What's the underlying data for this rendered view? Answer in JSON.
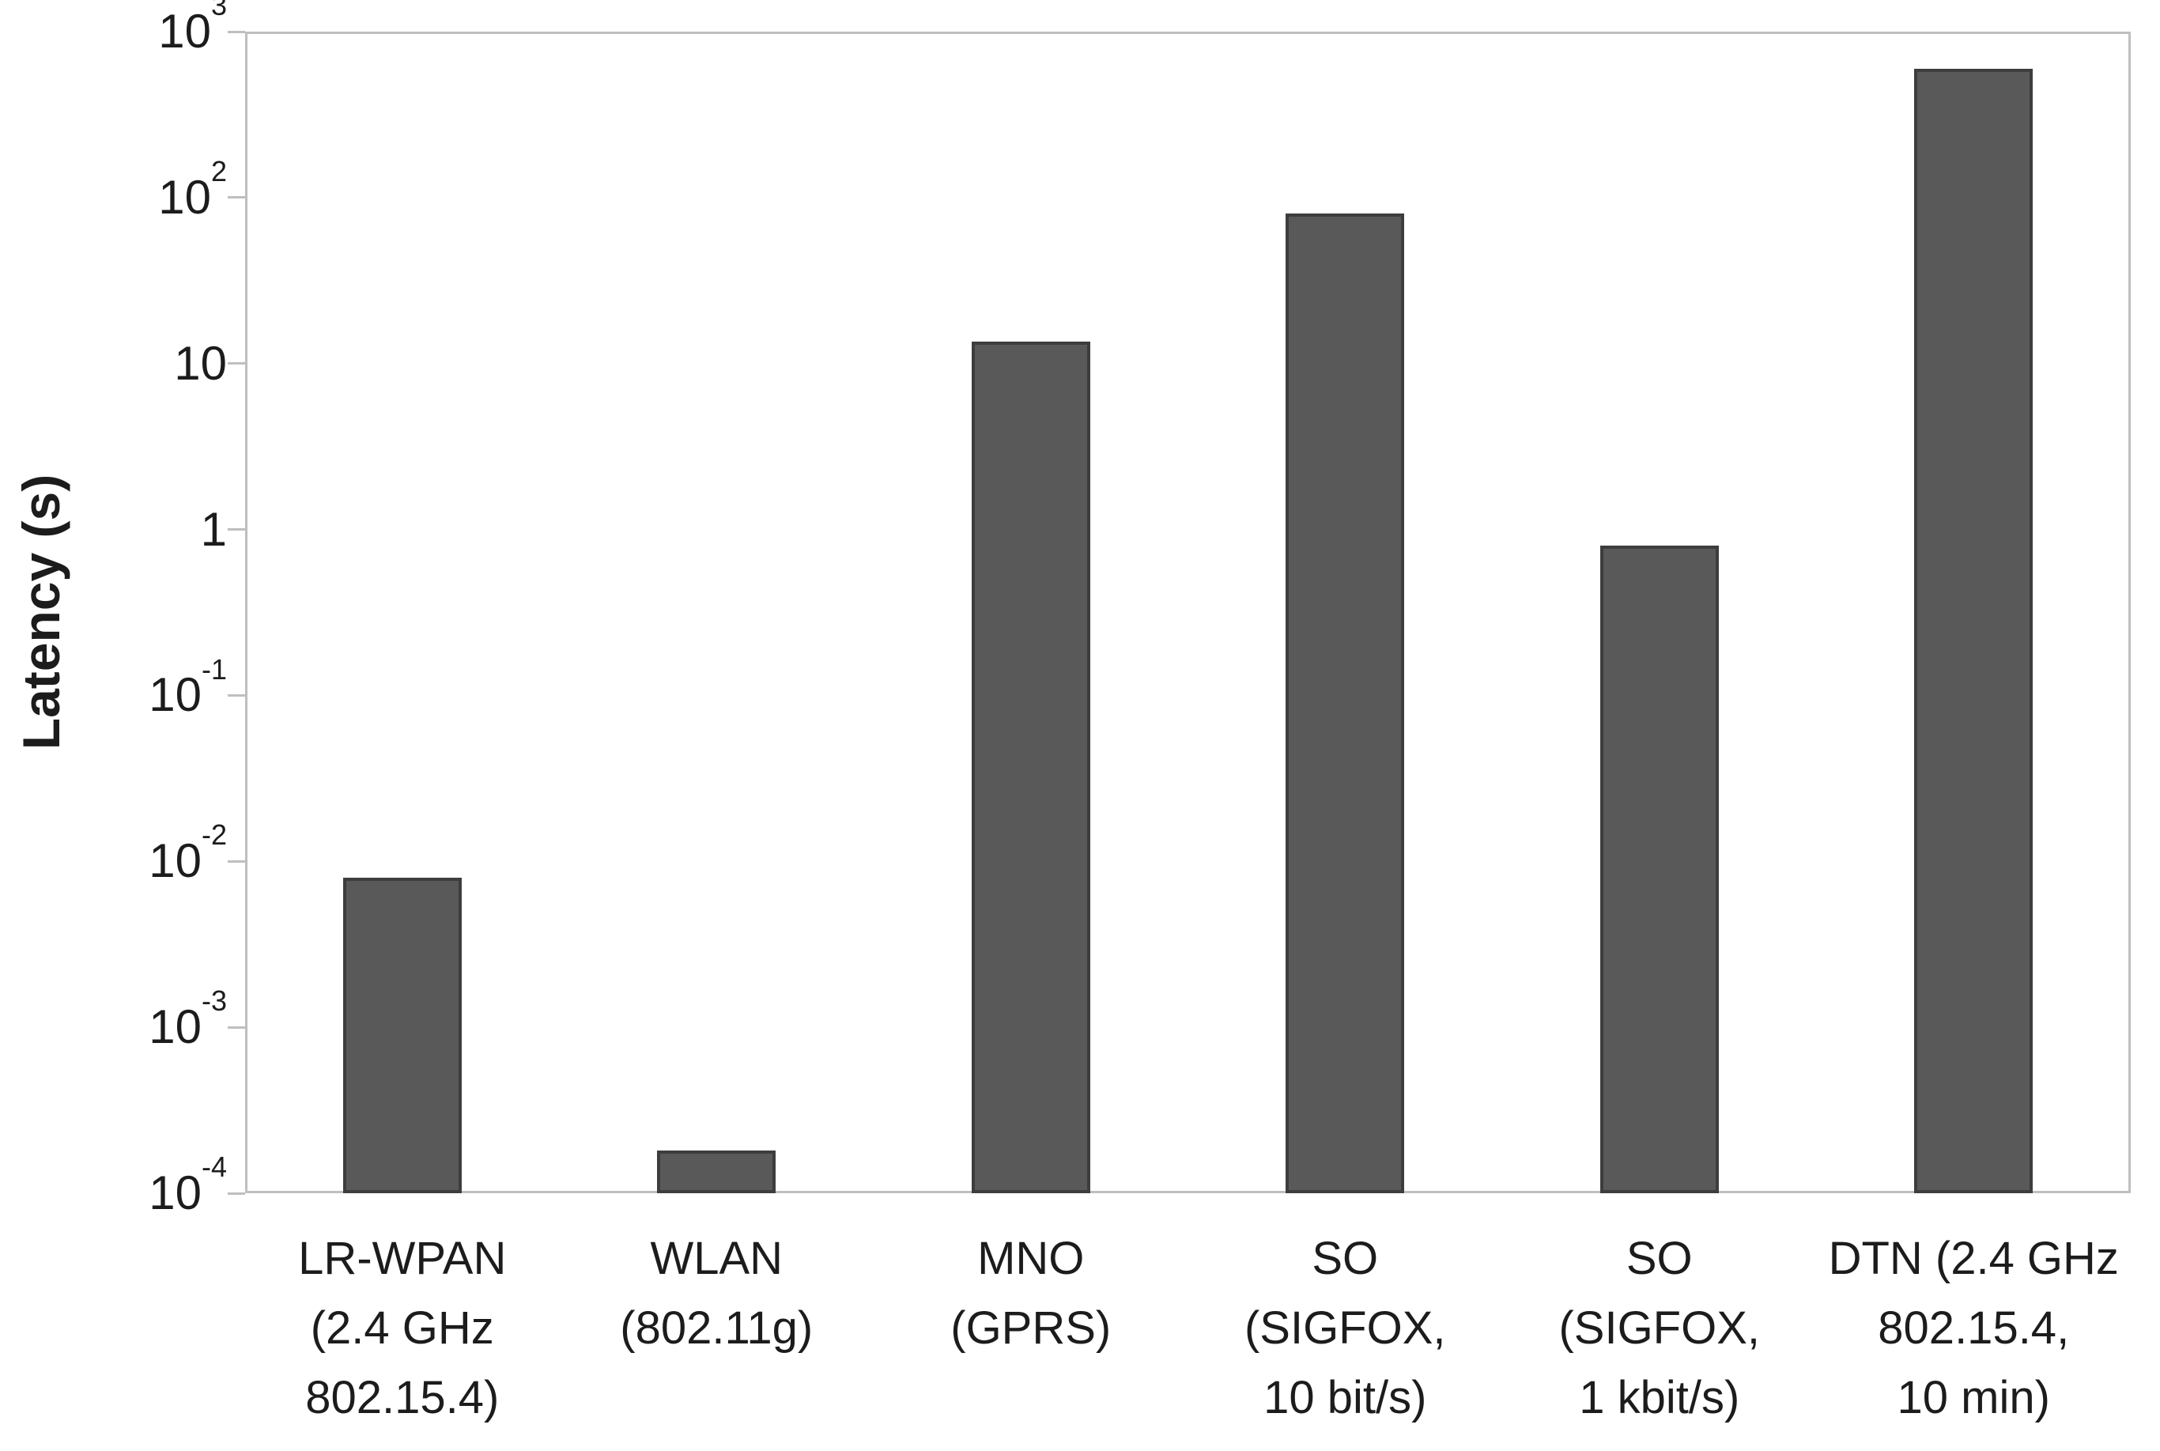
{
  "figure": {
    "background": "#ffffff"
  },
  "chart_data": {
    "type": "bar",
    "title": "",
    "xlabel": "",
    "ylabel": "Latency (s)",
    "yscale": "log",
    "ylim": [
      0.0001,
      1000
    ],
    "ylim_exponents": [
      -4,
      3
    ],
    "ytick_exponents": [
      3,
      2,
      1,
      0,
      -1,
      -2,
      -3,
      -4
    ],
    "ytick_labels": [
      "10³",
      "10²",
      "10",
      "1",
      "10⁻¹",
      "10⁻²",
      "10⁻³",
      "10⁻⁴"
    ],
    "grid": false,
    "legend_position": "none",
    "categories": [
      "LR-WPAN (2.4 GHz 802.15.4)",
      "WLAN (802.11g)",
      "MNO (GPRS)",
      "SO (SIGFOX, 10 bit/s)",
      "SO (SIGFOX, 1 kbit/s)",
      "DTN (2.4 GHz 802.15.4, 10 min)"
    ],
    "category_lines": [
      [
        "LR-WPAN",
        "(2.4 GHz",
        "802.15.4)"
      ],
      [
        "WLAN",
        "(802.11g)"
      ],
      [
        "MNO",
        "(GPRS)"
      ],
      [
        "SO",
        "(SIGFOX,",
        "10 bit/s)"
      ],
      [
        "SO",
        "(SIGFOX,",
        "1 kbit/s)"
      ],
      [
        "DTN (2.4 GHz",
        "802.15.4,",
        "10 min)"
      ]
    ],
    "values": [
      0.008,
      0.00018,
      13.5,
      80,
      0.8,
      600
    ],
    "series": [
      {
        "name": "Latency (s)",
        "values": [
          0.008,
          0.00018,
          13.5,
          80,
          0.8,
          600
        ]
      }
    ],
    "colors": {
      "bar_fill": "#595959",
      "bar_border": "#3d3d3d",
      "axis_line": "#bfbfbf",
      "tick_mark": "#bfbfbf",
      "text": "#1c1c1c"
    }
  }
}
